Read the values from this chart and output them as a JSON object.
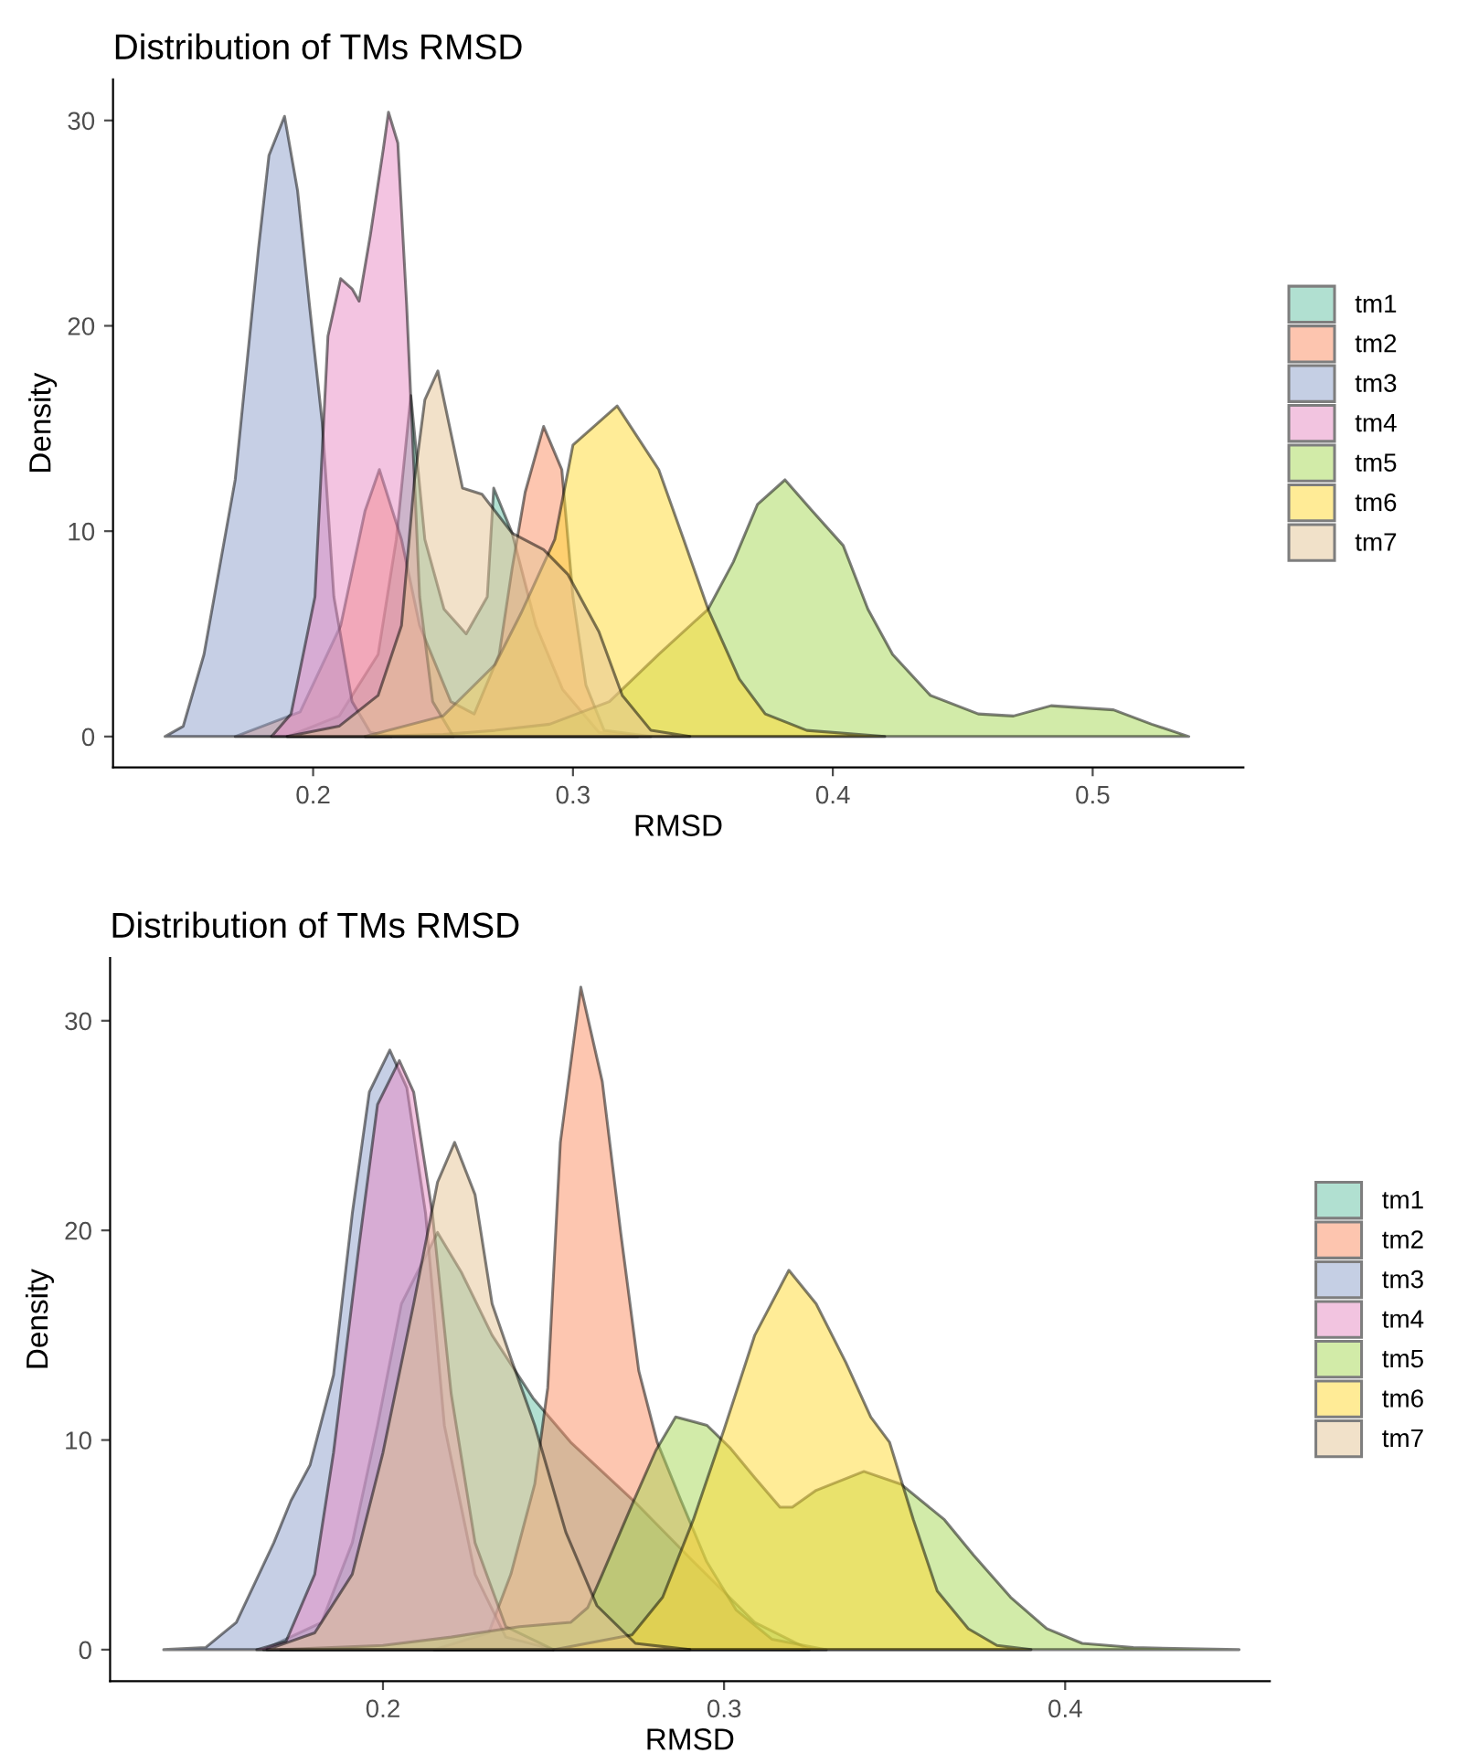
{
  "chart_data": [
    {
      "type": "area",
      "title": "Distribution of TMs RMSD",
      "xlabel": "RMSD",
      "ylabel": "Density",
      "xlim": [
        0.123,
        0.558
      ],
      "ylim": [
        -1.5,
        32
      ],
      "xticks": [
        0.2,
        0.3,
        0.4,
        0.5
      ],
      "yticks": [
        0,
        10,
        20,
        30
      ],
      "grid": false,
      "legend": "right",
      "series": [
        {
          "name": "tm1",
          "color": "#66c2a5",
          "x": [
            0.19,
            0.21,
            0.225,
            0.232,
            0.2376,
            0.243,
            0.2504,
            0.2589,
            0.267,
            0.2695,
            0.2766,
            0.2858,
            0.296,
            0.31,
            0.325
          ],
          "values": [
            0,
            1.0,
            4.0,
            9.6,
            16.6,
            9.6,
            6.2,
            5.0,
            6.8,
            12.1,
            9.9,
            5.4,
            2.3,
            0.2,
            0
          ]
        },
        {
          "name": "tm2",
          "color": "#fc8d62",
          "x": [
            0.17,
            0.195,
            0.2106,
            0.22,
            0.2255,
            0.234,
            0.241,
            0.253,
            0.262,
            0.2716,
            0.2766,
            0.2816,
            0.2887,
            0.2957,
            0.3,
            0.305,
            0.312,
            0.33
          ],
          "values": [
            0,
            1.2,
            5.4,
            11.0,
            13.0,
            9.6,
            5.4,
            1.7,
            1.1,
            4.0,
            8.2,
            11.9,
            15.1,
            13.0,
            6.8,
            2.5,
            0.3,
            0
          ]
        },
        {
          "name": "tm3",
          "color": "#8da0cb",
          "x": [
            0.143,
            0.15,
            0.158,
            0.17,
            0.179,
            0.183,
            0.189,
            0.194,
            0.1986,
            0.2035,
            0.208,
            0.215,
            0.222,
            0.23
          ],
          "values": [
            0,
            0.5,
            4.0,
            12.5,
            23.8,
            28.3,
            30.2,
            26.6,
            21.0,
            15.3,
            6.8,
            1.7,
            0.2,
            0
          ]
        },
        {
          "name": "tm4",
          "color": "#e78ac3",
          "x": [
            0.184,
            0.1915,
            0.2007,
            0.2057,
            0.2106,
            0.215,
            0.2177,
            0.222,
            0.227,
            0.229,
            0.2326,
            0.236,
            0.239,
            0.241,
            0.246,
            0.254
          ],
          "values": [
            0,
            1.1,
            6.8,
            19.5,
            22.3,
            21.8,
            21.2,
            24.4,
            28.6,
            30.4,
            28.9,
            21.0,
            12.5,
            6.8,
            1.7,
            0
          ]
        },
        {
          "name": "tm5",
          "color": "#a6d854",
          "x": [
            0.22,
            0.25,
            0.27,
            0.291,
            0.314,
            0.333,
            0.352,
            0.3617,
            0.371,
            0.3816,
            0.392,
            0.404,
            0.4135,
            0.423,
            0.4376,
            0.456,
            0.4695,
            0.484,
            0.508,
            0.5227,
            0.537
          ],
          "values": [
            0,
            0.1,
            0.3,
            0.6,
            1.7,
            4.0,
            6.2,
            8.5,
            11.3,
            12.5,
            11.0,
            9.3,
            6.2,
            4.0,
            2.0,
            1.1,
            1.0,
            1.5,
            1.3,
            0.6,
            0
          ]
        },
        {
          "name": "tm6",
          "color": "#ffd92f",
          "x": [
            0.22,
            0.25,
            0.27,
            0.28,
            0.293,
            0.3,
            0.317,
            0.333,
            0.3426,
            0.352,
            0.364,
            0.374,
            0.39,
            0.42
          ],
          "values": [
            0,
            1.0,
            3.5,
            6.0,
            9.6,
            14.2,
            16.1,
            13.0,
            9.6,
            6.2,
            2.8,
            1.1,
            0.3,
            0
          ]
        },
        {
          "name": "tm7",
          "color": "#e5c494",
          "x": [
            0.19,
            0.21,
            0.225,
            0.234,
            0.239,
            0.243,
            0.248,
            0.2575,
            0.265,
            0.2766,
            0.2887,
            0.298,
            0.31,
            0.319,
            0.33,
            0.345
          ],
          "values": [
            0,
            0.5,
            2.0,
            5.4,
            12.5,
            16.4,
            17.8,
            12.1,
            11.8,
            9.9,
            9.1,
            7.9,
            5.1,
            2.0,
            0.3,
            0
          ]
        }
      ]
    },
    {
      "type": "area",
      "title": "Distribution of TMs RMSD",
      "xlabel": "RMSD",
      "ylabel": "Density",
      "xlim": [
        0.12,
        0.46
      ],
      "ylim": [
        -1.5,
        33
      ],
      "xticks": [
        0.2,
        0.3,
        0.4
      ],
      "yticks": [
        0,
        10,
        20,
        30
      ],
      "grid": false,
      "legend": "right",
      "series": [
        {
          "name": "tm1",
          "color": "#66c2a5",
          "x": [
            0.165,
            0.182,
            0.191,
            0.1984,
            0.2054,
            0.216,
            0.223,
            0.232,
            0.244,
            0.255,
            0.2735,
            0.291,
            0.309,
            0.325
          ],
          "values": [
            0,
            1.3,
            5.1,
            10.7,
            16.5,
            19.9,
            18.0,
            15.0,
            12.0,
            9.9,
            7.1,
            4.2,
            1.3,
            0
          ]
        },
        {
          "name": "tm2",
          "color": "#fc8d62",
          "x": [
            0.215,
            0.231,
            0.2375,
            0.2445,
            0.2483,
            0.252,
            0.258,
            0.2643,
            0.2697,
            0.275,
            0.2804,
            0.2874,
            0.2949,
            0.3035,
            0.314,
            0.33
          ],
          "values": [
            0,
            0.8,
            3.6,
            7.9,
            12.5,
            24.2,
            31.6,
            27.1,
            19.9,
            13.3,
            9.9,
            7.1,
            4.2,
            1.9,
            0.5,
            0
          ]
        },
        {
          "name": "tm3",
          "color": "#8da0cb",
          "x": [
            0.1357,
            0.148,
            0.157,
            0.168,
            0.173,
            0.1786,
            0.1855,
            0.191,
            0.196,
            0.202,
            0.207,
            0.2125,
            0.218,
            0.227,
            0.236,
            0.25
          ],
          "values": [
            0,
            0.1,
            1.3,
            5.1,
            7.1,
            8.8,
            13.1,
            20.8,
            26.6,
            28.6,
            26.8,
            20.8,
            10.7,
            3.6,
            0.6,
            0
          ]
        },
        {
          "name": "tm4",
          "color": "#e78ac3",
          "x": [
            0.163,
            0.1716,
            0.18,
            0.1855,
            0.193,
            0.1984,
            0.2048,
            0.209,
            0.2145,
            0.22,
            0.227,
            0.236,
            0.25
          ],
          "values": [
            0,
            0.4,
            3.6,
            9.4,
            19.3,
            26.0,
            28.1,
            26.6,
            20.8,
            12.2,
            5.1,
            1.1,
            0
          ]
        },
        {
          "name": "tm5",
          "color": "#a6d854",
          "x": [
            0.17,
            0.2,
            0.22,
            0.24,
            0.255,
            0.26,
            0.2643,
            0.2735,
            0.28,
            0.2858,
            0.295,
            0.3019,
            0.309,
            0.3164,
            0.32,
            0.327,
            0.341,
            0.3518,
            0.3646,
            0.3732,
            0.384,
            0.3946,
            0.405,
            0.42,
            0.451
          ],
          "values": [
            0,
            0.2,
            0.6,
            1.1,
            1.3,
            2.0,
            3.6,
            7.1,
            9.5,
            11.1,
            10.7,
            9.6,
            8.2,
            6.8,
            6.8,
            7.6,
            8.5,
            7.9,
            6.2,
            4.5,
            2.5,
            1.0,
            0.3,
            0.1,
            0
          ]
        },
        {
          "name": "tm6",
          "color": "#ffd92f",
          "x": [
            0.25,
            0.273,
            0.282,
            0.291,
            0.3,
            0.309,
            0.319,
            0.327,
            0.3357,
            0.343,
            0.3485,
            0.3555,
            0.3625,
            0.3716,
            0.38,
            0.39
          ],
          "values": [
            0,
            0.7,
            2.5,
            6.2,
            10.5,
            15.0,
            18.1,
            16.5,
            13.7,
            11.1,
            9.9,
            6.2,
            2.8,
            1.0,
            0.2,
            0
          ]
        },
        {
          "name": "tm7",
          "color": "#e5c494",
          "x": [
            0.166,
            0.18,
            0.191,
            0.2,
            0.209,
            0.216,
            0.221,
            0.227,
            0.232,
            0.2375,
            0.2445,
            0.2536,
            0.2627,
            0.274,
            0.29
          ],
          "values": [
            0,
            0.8,
            3.6,
            9.4,
            16.5,
            22.3,
            24.2,
            21.7,
            16.5,
            13.9,
            10.7,
            5.6,
            2.1,
            0.3,
            0
          ]
        }
      ]
    }
  ]
}
